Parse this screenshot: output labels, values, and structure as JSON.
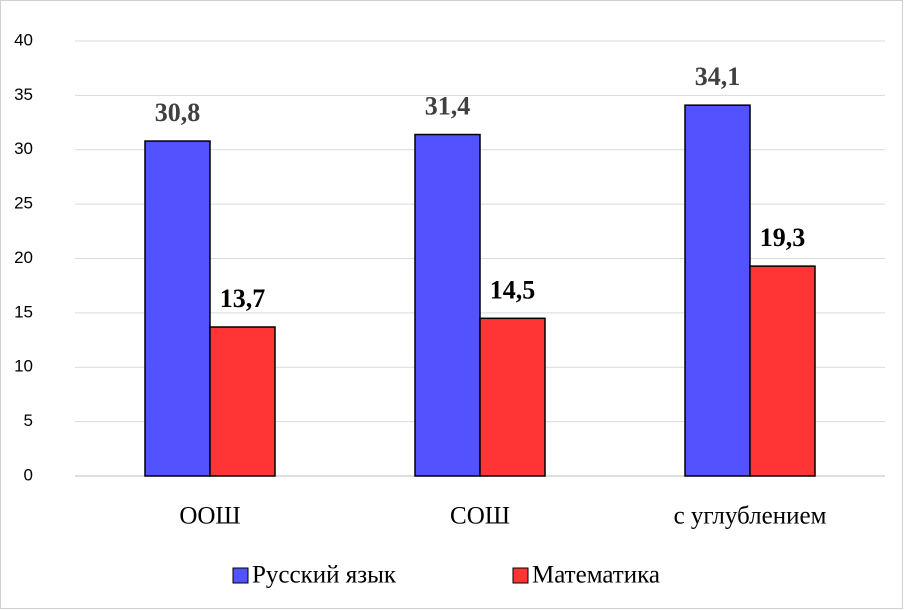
{
  "chart_data": {
    "type": "bar",
    "categories": [
      "ООШ",
      "СОШ",
      "с углублением"
    ],
    "series": [
      {
        "name": "Русский язык",
        "color": "#5252ff",
        "values": [
          30.8,
          31.4,
          34.1
        ],
        "value_labels": [
          "30,8",
          "31,4",
          "34,1"
        ]
      },
      {
        "name": "Математика",
        "color": "#ff3434",
        "values": [
          13.7,
          14.5,
          19.3
        ],
        "value_labels": [
          "13,7",
          "14,5",
          "19,3"
        ]
      }
    ],
    "ylim": [
      0,
      40
    ],
    "yticks": [
      0,
      5,
      10,
      15,
      20,
      25,
      30,
      35,
      40
    ],
    "grid": true,
    "legend": "bottom"
  }
}
